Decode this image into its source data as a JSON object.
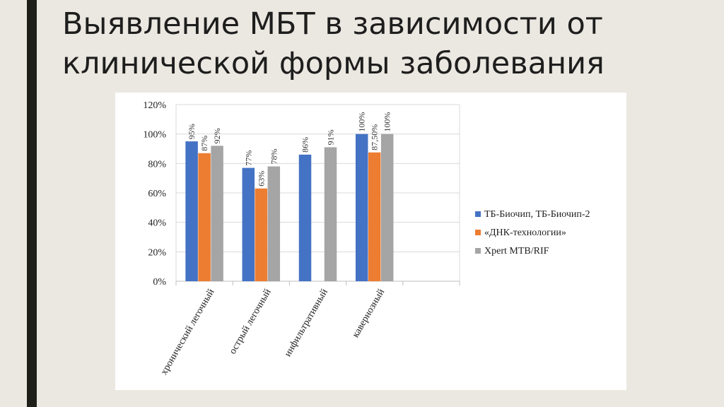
{
  "slide": {
    "title_line1": "Выявление МБТ в зависимости от",
    "title_line2": "клинической формы заболевания"
  },
  "colors": {
    "background": "#ebe8e1",
    "accent_bar": "#1f1f1a",
    "series_blue": "#4472c4",
    "series_orange": "#ed7d31",
    "series_gray": "#a5a5a5"
  },
  "chart_data": {
    "type": "bar",
    "title": "",
    "xlabel": "",
    "ylabel": "",
    "ylim": [
      0,
      120
    ],
    "y_ticks": [
      "0%",
      "20%",
      "40%",
      "60%",
      "80%",
      "100%",
      "120%"
    ],
    "y_tick_values": [
      0,
      20,
      40,
      60,
      80,
      100,
      120
    ],
    "categories": [
      "хронический легочный",
      "острый легочный",
      "инфильтративный",
      "кавернозный",
      ""
    ],
    "series": [
      {
        "name": "ТБ-Биочип, ТБ-Биочип-2",
        "color": "#4472c4",
        "values": [
          95,
          77,
          86,
          100,
          null
        ],
        "labels": [
          "95%",
          "77%",
          "86%",
          "100%",
          ""
        ]
      },
      {
        "name": "«ДНК-технологии»",
        "color": "#ed7d31",
        "values": [
          87,
          63,
          null,
          87.5,
          null
        ],
        "labels": [
          "87%",
          "63%",
          "",
          "87,50%",
          ""
        ]
      },
      {
        "name": "Xpert MTB/RIF",
        "color": "#a5a5a5",
        "values": [
          92,
          78,
          91,
          100,
          null
        ],
        "labels": [
          "92%",
          "78%",
          "91%",
          "100%",
          ""
        ]
      }
    ],
    "grid": true,
    "legend_position": "right"
  }
}
